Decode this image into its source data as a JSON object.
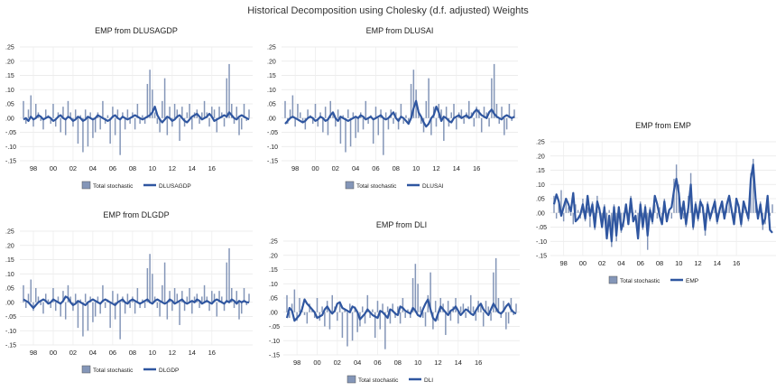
{
  "figure_title": "Historical Decomposition using Cholesky (d.f. adjusted) Weights",
  "colors": {
    "bar": "#8496B8",
    "bar_stroke": "#6f7fa3",
    "line": "#2F56A0"
  },
  "chart_data": [
    {
      "type": "bar+line",
      "title": "EMP from DLUSAGDP",
      "legend": [
        "Total stochastic",
        "DLUSAGDP"
      ],
      "legend_position": "bottom",
      "ylim": [
        -0.15,
        0.25
      ],
      "yticks": [
        ".25",
        ".20",
        ".15",
        ".10",
        ".05",
        ".00",
        "-.05",
        "-.10",
        "-.15"
      ],
      "xticks": [
        "98",
        "00",
        "02",
        "04",
        "06",
        "08",
        "10",
        "12",
        "14",
        "16"
      ],
      "grid": true,
      "series_key": "line_a"
    },
    {
      "type": "bar+line",
      "title": "EMP from DLUSAI",
      "legend": [
        "Total stochastic",
        "DLUSAI"
      ],
      "legend_position": "bottom",
      "ylim": [
        -0.15,
        0.25
      ],
      "yticks": [
        ".25",
        ".20",
        ".15",
        ".10",
        ".05",
        ".00",
        "-.05",
        "-.10",
        "-.15"
      ],
      "xticks": [
        "98",
        "00",
        "02",
        "04",
        "06",
        "08",
        "10",
        "12",
        "14",
        "16"
      ],
      "grid": true,
      "series_key": "line_b"
    },
    {
      "type": "bar+line",
      "title": "EMP from EMP",
      "legend": [
        "Total stochastic",
        "EMP"
      ],
      "legend_position": "bottom",
      "ylim": [
        -0.15,
        0.25
      ],
      "yticks": [
        ".25",
        ".20",
        ".15",
        ".10",
        ".05",
        ".00",
        "-.05",
        "-.10",
        "-.15"
      ],
      "xticks": [
        "98",
        "00",
        "02",
        "04",
        "06",
        "08",
        "10",
        "12",
        "14",
        "16"
      ],
      "grid": true,
      "series_key": "line_e"
    },
    {
      "type": "bar+line",
      "title": "EMP from DLGDP",
      "legend": [
        "Total stochastic",
        "DLGDP"
      ],
      "legend_position": "bottom",
      "ylim": [
        -0.15,
        0.25
      ],
      "yticks": [
        ".25",
        ".20",
        ".15",
        ".10",
        ".05",
        ".00",
        "-.05",
        "-.10",
        "-.15"
      ],
      "xticks": [
        "98",
        "00",
        "02",
        "04",
        "06",
        "08",
        "10",
        "12",
        "14",
        "16"
      ],
      "grid": true,
      "series_key": "line_c"
    },
    {
      "type": "bar+line",
      "title": "EMP from DLI",
      "legend": [
        "Total stochastic",
        "DLI"
      ],
      "legend_position": "bottom",
      "ylim": [
        -0.15,
        0.25
      ],
      "yticks": [
        ".25",
        ".20",
        ".15",
        ".10",
        ".05",
        ".00",
        "-.05",
        "-.10",
        "-.15"
      ],
      "xticks": [
        "98",
        "00",
        "02",
        "04",
        "06",
        "08",
        "10",
        "12",
        "14",
        "16"
      ],
      "grid": true,
      "series_key": "line_d"
    }
  ],
  "series": {
    "x_start": 1997.0,
    "x_step": 0.25,
    "total_stochastic": [
      0.06,
      -0.02,
      0.03,
      0.08,
      -0.03,
      0.05,
      0.02,
      -0.01,
      -0.04,
      0.03,
      0.01,
      -0.02,
      0.05,
      -0.03,
      0.02,
      -0.05,
      0.04,
      -0.06,
      0.06,
      0.02,
      -0.03,
      0.03,
      -0.09,
      0.01,
      -0.12,
      0.03,
      -0.1,
      0.02,
      -0.07,
      -0.05,
      0.02,
      -0.04,
      0.06,
      -0.02,
      0.01,
      -0.09,
      0.04,
      -0.06,
      0.03,
      -0.13,
      0.02,
      -0.04,
      0.03,
      -0.02,
      0.02,
      -0.04,
      0.05,
      -0.02,
      0.01,
      -0.02,
      0.12,
      0.17,
      0.1,
      0.02,
      -0.02,
      -0.05,
      0.06,
      0.14,
      -0.06,
      0.04,
      -0.03,
      0.05,
      0.03,
      -0.08,
      0.04,
      -0.03,
      0.02,
      0.05,
      -0.04,
      0.02,
      0.03,
      -0.02,
      0.02,
      0.06,
      0.02,
      -0.03,
      0.04,
      0.03,
      -0.05,
      0.04,
      0.02,
      -0.03,
      0.14,
      0.19,
      0.05,
      -0.02,
      0.04,
      -0.06,
      -0.04,
      0.05,
      -0.01,
      0.03
    ],
    "line_a": [
      -0.005,
      0.0,
      -0.01,
      0.005,
      -0.005,
      0.0,
      0.01,
      0.005,
      -0.005,
      0.0,
      0.005,
      0.0,
      -0.01,
      -0.005,
      0.005,
      0.01,
      0.0,
      -0.005,
      0.005,
      0.0,
      -0.01,
      -0.005,
      0.005,
      0.0,
      -0.01,
      -0.005,
      0.005,
      0.0,
      -0.005,
      0.0,
      0.01,
      0.005,
      0.0,
      -0.005,
      -0.01,
      -0.005,
      0.005,
      0.01,
      0.0,
      -0.005,
      0.005,
      0.0,
      -0.005,
      0.0,
      0.005,
      0.01,
      0.005,
      0.0,
      -0.005,
      0.0,
      0.005,
      0.01,
      0.02,
      0.04,
      0.01,
      -0.005,
      -0.015,
      -0.005,
      0.005,
      0.0,
      -0.01,
      -0.005,
      0.005,
      0.01,
      0.0,
      -0.01,
      -0.015,
      -0.005,
      0.005,
      0.01,
      0.015,
      0.005,
      -0.005,
      0.0,
      0.005,
      0.015,
      0.005,
      -0.01,
      -0.005,
      0.0,
      0.005,
      0.01,
      0.005,
      0.02,
      0.01,
      0.0,
      -0.005,
      0.005,
      0.01,
      0.005,
      0.0,
      -0.005
    ],
    "line_b": [
      -0.02,
      -0.01,
      0.0,
      0.005,
      0.0,
      -0.005,
      -0.01,
      -0.015,
      -0.01,
      0.0,
      0.005,
      0.0,
      -0.01,
      -0.005,
      0.005,
      0.0,
      -0.01,
      -0.005,
      0.01,
      0.02,
      0.0,
      -0.01,
      0.005,
      0.0,
      -0.005,
      -0.01,
      -0.005,
      0.0,
      0.005,
      0.0,
      0.01,
      0.005,
      -0.005,
      0.0,
      0.005,
      -0.005,
      0.0,
      0.005,
      0.01,
      0.0,
      -0.005,
      0.0,
      0.01,
      0.02,
      0.0,
      -0.01,
      0.005,
      0.0,
      -0.01,
      -0.02,
      0.0,
      0.035,
      0.06,
      0.02,
      0.005,
      -0.015,
      -0.03,
      -0.02,
      0.0,
      0.01,
      0.04,
      0.02,
      -0.01,
      0.005,
      0.0,
      -0.01,
      -0.015,
      0.0,
      0.005,
      0.01,
      0.0,
      0.005,
      0.01,
      0.0,
      0.005,
      0.02,
      0.03,
      0.02,
      0.01,
      0.005,
      0.0,
      0.02,
      0.03,
      0.015,
      0.005,
      0.0,
      -0.005,
      0.005,
      0.01,
      0.005,
      0.0,
      0.005
    ],
    "line_c": [
      0.01,
      0.005,
      0.0,
      -0.01,
      -0.02,
      -0.01,
      0.0,
      0.005,
      0.01,
      0.005,
      -0.005,
      0.0,
      0.01,
      0.005,
      0.0,
      -0.005,
      0.005,
      0.02,
      0.015,
      0.0,
      -0.01,
      -0.005,
      0.005,
      0.0,
      -0.005,
      -0.01,
      0.0,
      0.005,
      0.01,
      0.005,
      0.0,
      -0.005,
      0.005,
      0.01,
      0.005,
      0.0,
      -0.005,
      -0.01,
      0.0,
      0.005,
      0.01,
      0.0,
      -0.005,
      0.005,
      0.01,
      0.005,
      0.0,
      -0.005,
      0.0,
      0.005,
      0.01,
      0.0,
      -0.005,
      0.005,
      0.01,
      0.005,
      0.0,
      -0.005,
      0.0,
      0.01,
      0.005,
      -0.005,
      0.0,
      0.005,
      0.01,
      0.0,
      -0.005,
      0.0,
      0.005,
      0.0,
      0.01,
      0.005,
      -0.005,
      0.0,
      0.005,
      0.0,
      -0.005,
      0.005,
      0.01,
      0.005,
      0.0,
      -0.005,
      0.005,
      0.0,
      0.01,
      0.005,
      -0.005,
      0.005,
      0.0,
      0.005,
      0.0,
      0.0
    ],
    "line_d": [
      -0.02,
      0.015,
      0.005,
      -0.03,
      -0.02,
      -0.01,
      0.01,
      0.045,
      0.03,
      0.02,
      0.01,
      0.0,
      -0.02,
      -0.015,
      -0.01,
      0.01,
      0.02,
      0.005,
      -0.005,
      0.005,
      0.03,
      0.035,
      0.015,
      0.01,
      0.005,
      0.0,
      0.02,
      0.015,
      0.0,
      -0.025,
      -0.015,
      -0.005,
      0.01,
      0.0,
      -0.01,
      -0.015,
      -0.02,
      0.005,
      0.0,
      -0.01,
      -0.02,
      0.01,
      0.005,
      -0.005,
      -0.01,
      0.02,
      0.015,
      0.005,
      0.0,
      -0.005,
      0.015,
      0.005,
      -0.01,
      -0.015,
      0.01,
      0.03,
      0.045,
      0.01,
      -0.02,
      -0.03,
      -0.005,
      0.02,
      0.01,
      0.0,
      -0.01,
      0.005,
      0.01,
      0.02,
      0.005,
      -0.01,
      0.0,
      0.01,
      0.005,
      -0.005,
      -0.01,
      0.005,
      0.02,
      0.03,
      0.01,
      0.0,
      -0.01,
      0.01,
      0.03,
      0.015,
      0.0,
      -0.005,
      0.005,
      0.02,
      0.03,
      0.01,
      0.0,
      -0.005
    ],
    "line_e": [
      0.03,
      0.065,
      0.04,
      -0.01,
      0.02,
      0.05,
      0.03,
      0.005,
      0.07,
      -0.03,
      -0.02,
      -0.005,
      0.03,
      -0.02,
      0.06,
      -0.01,
      0.03,
      -0.05,
      0.04,
      0.01,
      -0.05,
      0.02,
      -0.09,
      -0.01,
      -0.1,
      0.02,
      -0.08,
      0.02,
      -0.06,
      -0.03,
      0.03,
      -0.04,
      0.05,
      -0.03,
      -0.01,
      -0.09,
      0.03,
      -0.05,
      0.02,
      -0.08,
      0.01,
      -0.03,
      0.06,
      0.03,
      -0.01,
      -0.04,
      0.04,
      -0.03,
      0.01,
      0.02,
      0.08,
      0.12,
      0.07,
      -0.02,
      0.04,
      -0.04,
      0.02,
      0.1,
      -0.05,
      0.03,
      -0.02,
      0.04,
      0.02,
      -0.06,
      0.03,
      -0.02,
      0.01,
      0.04,
      -0.03,
      0.01,
      0.04,
      -0.02,
      0.03,
      0.06,
      0.01,
      -0.04,
      0.05,
      0.02,
      -0.04,
      0.04,
      0.01,
      -0.02,
      0.12,
      0.17,
      0.05,
      -0.02,
      0.03,
      -0.04,
      -0.02,
      0.06,
      -0.06,
      -0.07
    ]
  }
}
